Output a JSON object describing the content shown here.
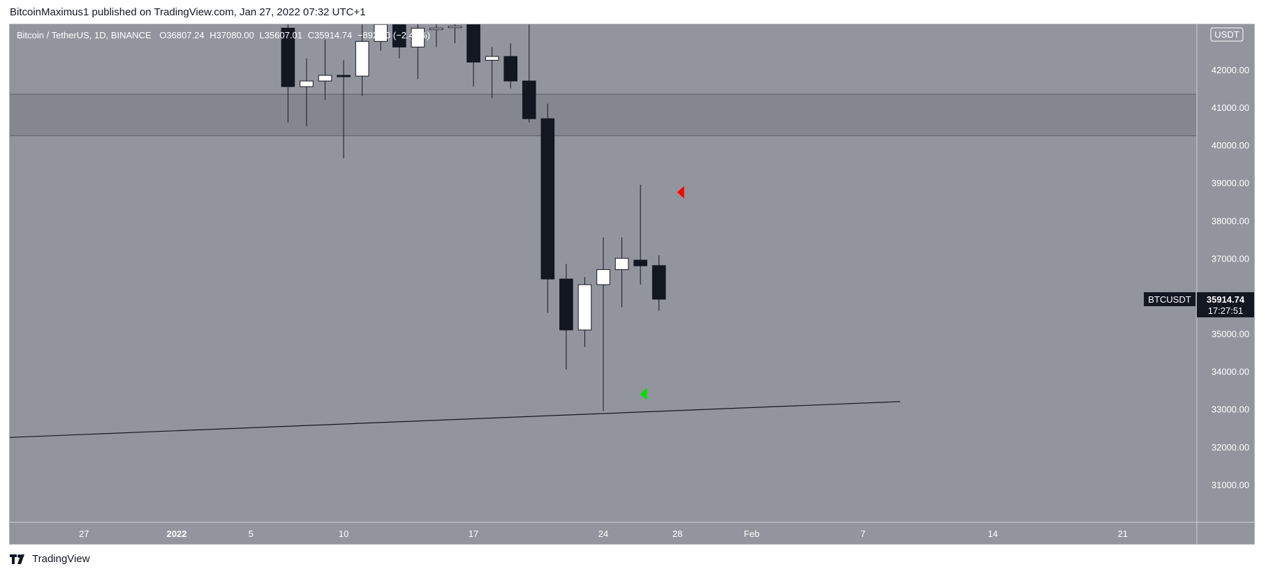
{
  "header": {
    "published_text": "BitcoinMaximus1 published on TradingView.com, Jan 27, 2022 07:32 UTC+1"
  },
  "legend": {
    "symbol": "Bitcoin / TetherUS, 1D, BINANCE",
    "open_label": "O",
    "open_value": "36807.24",
    "high_label": "H",
    "high_value": "37080.00",
    "low_label": "L",
    "low_value": "35607.01",
    "close_label": "C",
    "close_value": "35914.74",
    "change": "−892.50 (−2.43%)"
  },
  "price_axis": {
    "currency_badge": "USDT",
    "last_symbol": "BTCUSDT",
    "last_price": "35914.74",
    "countdown": "17:27:51"
  },
  "footer": {
    "brand": "TradingView"
  },
  "colors": {
    "plot_bg": "#93959e",
    "resistance_zone": "#858790",
    "candle_up": "#ffffff",
    "candle_down": "#131722",
    "marker_bearish": "#ff0000",
    "marker_bullish": "#00e000"
  },
  "chart_data": {
    "type": "candlestick",
    "timeframe": "1D",
    "y_ticks": [
      "31000.00",
      "32000.00",
      "33000.00",
      "34000.00",
      "35000.00",
      "36000.00",
      "37000.00",
      "38000.00",
      "39000.00",
      "40000.00",
      "41000.00",
      "42000.00"
    ],
    "x_tick_labels": [
      {
        "label": "27",
        "date": "2021-12-27"
      },
      {
        "label": "2022",
        "date": "2022-01-01"
      },
      {
        "label": "5",
        "date": "2022-01-05"
      },
      {
        "label": "10",
        "date": "2022-01-10"
      },
      {
        "label": "17",
        "date": "2022-01-17"
      },
      {
        "label": "24",
        "date": "2022-01-24"
      },
      {
        "label": "28",
        "date": "2022-01-28"
      },
      {
        "label": "Feb",
        "date": "2022-02-01"
      },
      {
        "label": "7",
        "date": "2022-02-07"
      },
      {
        "label": "14",
        "date": "2022-02-14"
      },
      {
        "label": "21",
        "date": "2022-02-21"
      }
    ],
    "ylim": [
      30000,
      43200
    ],
    "xlim": [
      "2021-12-23",
      "2022-02-25"
    ],
    "candles": [
      {
        "date": "2022-01-07",
        "open": 43100,
        "high": 43200,
        "low": 40600,
        "close": 41550
      },
      {
        "date": "2022-01-08",
        "open": 41550,
        "high": 42300,
        "low": 40500,
        "close": 41700
      },
      {
        "date": "2022-01-09",
        "open": 41700,
        "high": 42800,
        "low": 41200,
        "close": 41850
      },
      {
        "date": "2022-01-10",
        "open": 41850,
        "high": 42250,
        "low": 39650,
        "close": 41830
      },
      {
        "date": "2022-01-11",
        "open": 41830,
        "high": 43200,
        "low": 41300,
        "close": 42750
      },
      {
        "date": "2022-01-12",
        "open": 42750,
        "high": 43200,
        "low": 42500,
        "close": 43200
      },
      {
        "date": "2022-01-13",
        "open": 43200,
        "high": 43200,
        "low": 42300,
        "close": 42600
      },
      {
        "date": "2022-01-14",
        "open": 42600,
        "high": 43200,
        "low": 41750,
        "close": 43100
      },
      {
        "date": "2022-01-15",
        "open": 43100,
        "high": 43200,
        "low": 42600,
        "close": 43100
      },
      {
        "date": "2022-01-16",
        "open": 43150,
        "high": 43200,
        "low": 42700,
        "close": 43150
      },
      {
        "date": "2022-01-17",
        "open": 43200,
        "high": 43200,
        "low": 41550,
        "close": 42200
      },
      {
        "date": "2022-01-18",
        "open": 42250,
        "high": 42600,
        "low": 41250,
        "close": 42350
      },
      {
        "date": "2022-01-19",
        "open": 42350,
        "high": 42700,
        "low": 41500,
        "close": 41700
      },
      {
        "date": "2022-01-20",
        "open": 41700,
        "high": 43200,
        "low": 40600,
        "close": 40700
      },
      {
        "date": "2022-01-21",
        "open": 40700,
        "high": 41100,
        "low": 35550,
        "close": 36450
      },
      {
        "date": "2022-01-22",
        "open": 36450,
        "high": 36850,
        "low": 34050,
        "close": 35100
      },
      {
        "date": "2022-01-23",
        "open": 35100,
        "high": 36500,
        "low": 34650,
        "close": 36300
      },
      {
        "date": "2022-01-24",
        "open": 36300,
        "high": 37550,
        "low": 32950,
        "close": 36700
      },
      {
        "date": "2022-01-25",
        "open": 36700,
        "high": 37550,
        "low": 35700,
        "close": 37000
      },
      {
        "date": "2022-01-26",
        "open": 36950,
        "high": 38950,
        "low": 36300,
        "close": 36800
      },
      {
        "date": "2022-01-27",
        "open": 36807.24,
        "high": 37080.0,
        "low": 35607.01,
        "close": 35914.74
      }
    ],
    "resistance_zone": {
      "low": 40250,
      "high": 41350
    },
    "support_line": {
      "start": {
        "date": "2021-12-23",
        "price": 32250
      },
      "end": {
        "date": "2022-02-09",
        "price": 33200
      }
    },
    "markers": [
      {
        "date": "2022-01-27",
        "price": 38750,
        "kind": "bearish",
        "direction": "left"
      },
      {
        "date": "2022-01-25",
        "price": 33400,
        "kind": "bullish",
        "direction": "left"
      }
    ]
  }
}
